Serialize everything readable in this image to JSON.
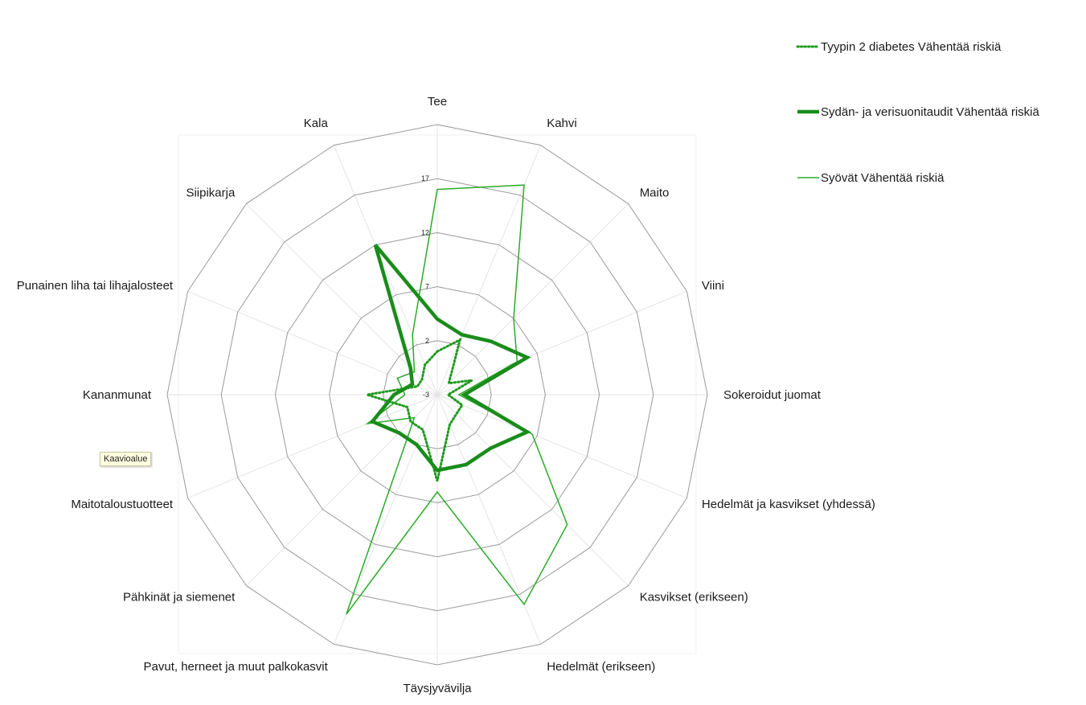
{
  "chart_data": {
    "type": "radar",
    "categories": [
      "Tee",
      "Kahvi",
      "Maito",
      "Viini",
      "Sokeroidut juomat",
      "Hedelmät ja kasvikset (yhdessä)",
      "Kasvikset (erikseen)",
      "Hedelmät (erikseen)",
      "Täysjyvävilja",
      "Pavut, herneet ja muut palkokasvit",
      "Pähkinät ja siemenet",
      "Maitotaloustuotteet",
      "Kananmunat",
      "Punainen liha tai lihajalosteet",
      "Siipikarja",
      "Kala"
    ],
    "axis_ticks": [
      "-3",
      "2",
      "7",
      "12",
      "17"
    ],
    "rlim": [
      -3,
      22
    ],
    "grid": true,
    "legend_position": "top-right",
    "series": [
      {
        "name": "Tyypin 2 diabetes Vähentää riskiä",
        "values": [
          1,
          2.5,
          -1.5,
          0.5,
          -2,
          -0.5,
          -0.5,
          0,
          5,
          0.5,
          0.5,
          0,
          3.5,
          -1,
          -1,
          0
        ],
        "color": "#1f9a1f",
        "style": "dotted"
      },
      {
        "name": "Sydän- ja verisuonitaudit Vähentää riskiä",
        "values": [
          4,
          3,
          4,
          6,
          -0.5,
          6,
          4,
          4,
          4,
          2,
          2,
          3.5,
          1,
          -0.5,
          0.5,
          12
        ],
        "color": "#1a8c1a",
        "style": "thick"
      },
      {
        "name": "Syövät Vähentää riskiä",
        "values": [
          16,
          18,
          7,
          5,
          -1,
          6.5,
          14,
          18,
          6,
          19,
          0,
          4,
          0,
          1,
          0,
          3
        ],
        "color": "#2aaa2a",
        "style": "thin"
      }
    ]
  },
  "tooltip": {
    "text": "Kaavioalue"
  }
}
